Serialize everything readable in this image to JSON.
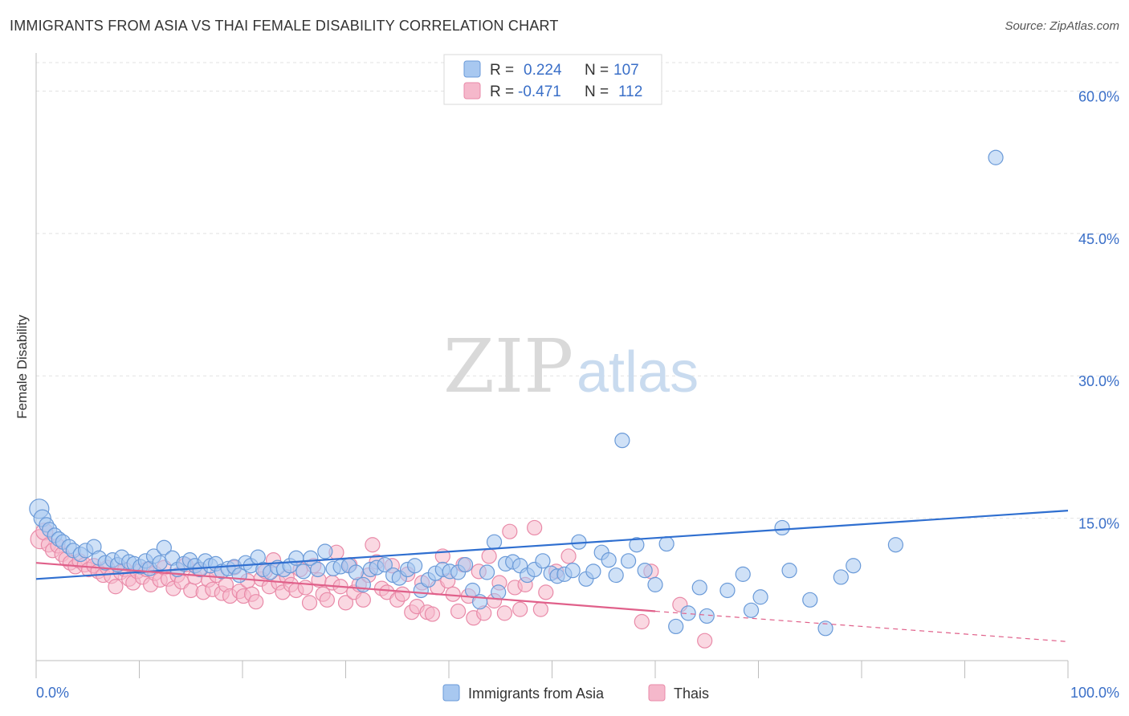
{
  "title": "IMMIGRANTS FROM ASIA VS THAI FEMALE DISABILITY CORRELATION CHART",
  "source": "Source: ZipAtlas.com",
  "watermark": {
    "part1": "ZIP",
    "part2": "atlas"
  },
  "legend_top": [
    {
      "r_label": "R =",
      "r_value": "0.224",
      "n_label": "N =",
      "n_value": "107",
      "color": "#a8c8f0"
    },
    {
      "r_label": "R =",
      "r_value": "-0.471",
      "n_label": "N =",
      "n_value": "112",
      "color": "#f5b8cb"
    }
  ],
  "legend_bottom": [
    {
      "label": "Immigrants from Asia",
      "color": "#a8c8f0"
    },
    {
      "label": "Thais",
      "color": "#f5b8cb"
    }
  ],
  "colors": {
    "blue_fill": "#a8c8f0",
    "blue_stroke": "#6a9ad8",
    "blue_line": "#2f6fd0",
    "pink_fill": "#f5b8cb",
    "pink_stroke": "#e98aa8",
    "pink_line": "#e0608a",
    "grid": "#e2e2e2",
    "tick_label": "#3a6fc8"
  },
  "chart_data": {
    "type": "scatter",
    "title": "IMMIGRANTS FROM ASIA VS THAI FEMALE DISABILITY CORRELATION CHART",
    "xlabel": "",
    "ylabel": "Female Disability",
    "xlim": [
      0,
      100
    ],
    "ylim": [
      0,
      63
    ],
    "x_ticks": [
      "0.0%",
      "100.0%"
    ],
    "y_ticks": [
      "15.0%",
      "30.0%",
      "45.0%",
      "60.0%"
    ],
    "y_tick_values": [
      15,
      30,
      45,
      60
    ],
    "grid": "horizontal dashed",
    "legend": "top-center",
    "series": [
      {
        "name": "Immigrants from Asia",
        "trend": {
          "x": [
            0,
            100
          ],
          "y": [
            8.6,
            15.8
          ],
          "dashed_after": null
        },
        "points": [
          [
            0.3,
            16.0
          ],
          [
            0.6,
            15.0
          ],
          [
            1.0,
            14.3
          ],
          [
            1.3,
            13.8
          ],
          [
            1.8,
            13.2
          ],
          [
            2.2,
            12.8
          ],
          [
            2.6,
            12.5
          ],
          [
            3.2,
            12.0
          ],
          [
            3.6,
            11.6
          ],
          [
            4.3,
            11.2
          ],
          [
            4.8,
            11.6
          ],
          [
            5.6,
            12.0
          ],
          [
            6.1,
            10.8
          ],
          [
            6.7,
            10.3
          ],
          [
            7.4,
            10.6
          ],
          [
            7.9,
            10.1
          ],
          [
            8.3,
            10.9
          ],
          [
            9.0,
            10.4
          ],
          [
            9.5,
            10.2
          ],
          [
            10.1,
            9.9
          ],
          [
            10.6,
            10.5
          ],
          [
            11.0,
            9.7
          ],
          [
            11.4,
            11.0
          ],
          [
            12.0,
            10.3
          ],
          [
            12.4,
            11.9
          ],
          [
            13.2,
            10.8
          ],
          [
            13.7,
            9.6
          ],
          [
            14.3,
            10.2
          ],
          [
            14.9,
            10.6
          ],
          [
            15.4,
            10.0
          ],
          [
            15.9,
            9.6
          ],
          [
            16.4,
            10.5
          ],
          [
            16.9,
            10.0
          ],
          [
            17.4,
            10.2
          ],
          [
            18.0,
            9.4
          ],
          [
            18.6,
            9.7
          ],
          [
            19.2,
            9.9
          ],
          [
            19.7,
            9.0
          ],
          [
            20.3,
            10.3
          ],
          [
            20.8,
            10.0
          ],
          [
            21.5,
            10.9
          ],
          [
            22.0,
            9.6
          ],
          [
            22.7,
            9.3
          ],
          [
            23.4,
            9.8
          ],
          [
            24.0,
            9.6
          ],
          [
            24.6,
            10.0
          ],
          [
            25.2,
            10.8
          ],
          [
            25.9,
            9.4
          ],
          [
            26.6,
            10.8
          ],
          [
            27.3,
            9.6
          ],
          [
            28.0,
            11.5
          ],
          [
            28.8,
            9.7
          ],
          [
            29.5,
            9.9
          ],
          [
            30.3,
            10.0
          ],
          [
            31.0,
            9.3
          ],
          [
            31.7,
            8.0
          ],
          [
            32.4,
            9.6
          ],
          [
            33.0,
            9.8
          ],
          [
            33.8,
            10.1
          ],
          [
            34.6,
            9.0
          ],
          [
            35.2,
            8.7
          ],
          [
            36.0,
            9.6
          ],
          [
            36.7,
            10.0
          ],
          [
            37.3,
            7.4
          ],
          [
            38.0,
            8.5
          ],
          [
            38.7,
            9.2
          ],
          [
            39.4,
            9.6
          ],
          [
            40.1,
            9.4
          ],
          [
            40.9,
            9.3
          ],
          [
            41.6,
            10.1
          ],
          [
            42.3,
            7.4
          ],
          [
            43.0,
            6.2
          ],
          [
            43.7,
            9.3
          ],
          [
            44.4,
            12.5
          ],
          [
            44.8,
            7.2
          ],
          [
            45.5,
            10.2
          ],
          [
            46.2,
            10.4
          ],
          [
            46.9,
            10.0
          ],
          [
            47.6,
            9.0
          ],
          [
            48.3,
            9.6
          ],
          [
            49.1,
            10.5
          ],
          [
            49.9,
            9.2
          ],
          [
            50.5,
            8.9
          ],
          [
            51.2,
            9.1
          ],
          [
            52.0,
            9.5
          ],
          [
            52.6,
            12.5
          ],
          [
            53.3,
            8.6
          ],
          [
            54.0,
            9.4
          ],
          [
            54.8,
            11.4
          ],
          [
            55.5,
            10.6
          ],
          [
            56.2,
            9.0
          ],
          [
            56.8,
            23.2
          ],
          [
            57.4,
            10.5
          ],
          [
            58.2,
            12.2
          ],
          [
            59.0,
            9.5
          ],
          [
            60.0,
            8.0
          ],
          [
            61.1,
            12.3
          ],
          [
            62.0,
            3.6
          ],
          [
            63.2,
            5.0
          ],
          [
            64.3,
            7.7
          ],
          [
            65.0,
            4.7
          ],
          [
            67.0,
            7.4
          ],
          [
            68.5,
            9.1
          ],
          [
            69.3,
            5.3
          ],
          [
            70.2,
            6.7
          ],
          [
            72.3,
            14.0
          ],
          [
            73.0,
            9.5
          ],
          [
            75.0,
            6.4
          ],
          [
            76.5,
            3.4
          ],
          [
            78.0,
            8.8
          ],
          [
            79.2,
            10.0
          ],
          [
            83.3,
            12.2
          ],
          [
            93.0,
            53.0
          ]
        ]
      },
      {
        "name": "Thais",
        "trend": {
          "x": [
            0,
            60
          ],
          "y": [
            10.3,
            5.2
          ],
          "dashed_to": [
            100,
            2.0
          ]
        },
        "points": [
          [
            0.4,
            12.8
          ],
          [
            0.8,
            13.6
          ],
          [
            1.2,
            12.2
          ],
          [
            1.6,
            11.6
          ],
          [
            2.1,
            12.1
          ],
          [
            2.5,
            11.2
          ],
          [
            2.9,
            10.7
          ],
          [
            3.3,
            10.3
          ],
          [
            3.8,
            9.9
          ],
          [
            4.2,
            10.5
          ],
          [
            4.7,
            10.1
          ],
          [
            5.1,
            9.6
          ],
          [
            5.6,
            10.0
          ],
          [
            6.0,
            9.4
          ],
          [
            6.5,
            9.0
          ],
          [
            6.9,
            9.8
          ],
          [
            7.3,
            8.9
          ],
          [
            7.7,
            7.8
          ],
          [
            8.2,
            9.3
          ],
          [
            8.6,
            9.6
          ],
          [
            9.0,
            8.6
          ],
          [
            9.4,
            8.2
          ],
          [
            9.8,
            9.4
          ],
          [
            10.3,
            8.8
          ],
          [
            10.7,
            9.6
          ],
          [
            11.1,
            8.0
          ],
          [
            11.5,
            9.2
          ],
          [
            12.0,
            8.5
          ],
          [
            12.4,
            9.8
          ],
          [
            12.8,
            8.6
          ],
          [
            13.3,
            7.6
          ],
          [
            13.7,
            9.0
          ],
          [
            14.1,
            8.3
          ],
          [
            14.5,
            10.1
          ],
          [
            15.0,
            7.4
          ],
          [
            15.4,
            8.8
          ],
          [
            15.8,
            9.6
          ],
          [
            16.2,
            7.2
          ],
          [
            16.7,
            8.5
          ],
          [
            17.1,
            7.5
          ],
          [
            17.5,
            9.0
          ],
          [
            18.0,
            7.1
          ],
          [
            18.4,
            8.0
          ],
          [
            18.8,
            6.8
          ],
          [
            19.2,
            9.8
          ],
          [
            19.7,
            7.3
          ],
          [
            20.1,
            6.8
          ],
          [
            20.5,
            8.4
          ],
          [
            20.9,
            7.0
          ],
          [
            21.3,
            6.2
          ],
          [
            21.8,
            8.6
          ],
          [
            22.2,
            9.4
          ],
          [
            22.6,
            7.8
          ],
          [
            23.0,
            10.6
          ],
          [
            23.5,
            8.2
          ],
          [
            23.9,
            7.2
          ],
          [
            24.3,
            8.8
          ],
          [
            24.7,
            8.0
          ],
          [
            25.2,
            7.4
          ],
          [
            25.6,
            9.6
          ],
          [
            26.1,
            7.7
          ],
          [
            26.5,
            6.1
          ],
          [
            26.9,
            10.0
          ],
          [
            27.4,
            8.5
          ],
          [
            27.8,
            7.0
          ],
          [
            28.2,
            6.4
          ],
          [
            28.7,
            8.2
          ],
          [
            29.1,
            11.4
          ],
          [
            29.5,
            7.8
          ],
          [
            30.0,
            6.1
          ],
          [
            30.4,
            10.1
          ],
          [
            30.8,
            7.2
          ],
          [
            31.3,
            8.0
          ],
          [
            31.7,
            6.4
          ],
          [
            32.2,
            9.0
          ],
          [
            32.6,
            12.2
          ],
          [
            33.0,
            10.4
          ],
          [
            33.5,
            7.6
          ],
          [
            34.0,
            7.2
          ],
          [
            34.5,
            10.0
          ],
          [
            35.0,
            6.4
          ],
          [
            35.5,
            7.0
          ],
          [
            36.0,
            9.1
          ],
          [
            36.4,
            5.1
          ],
          [
            36.9,
            5.7
          ],
          [
            37.4,
            8.2
          ],
          [
            37.9,
            5.1
          ],
          [
            38.4,
            4.9
          ],
          [
            38.9,
            7.7
          ],
          [
            39.4,
            11.0
          ],
          [
            39.9,
            8.4
          ],
          [
            40.4,
            7.0
          ],
          [
            40.9,
            5.2
          ],
          [
            41.4,
            10.1
          ],
          [
            41.9,
            6.8
          ],
          [
            42.4,
            4.5
          ],
          [
            42.9,
            9.4
          ],
          [
            43.4,
            5.0
          ],
          [
            43.9,
            11.0
          ],
          [
            44.4,
            6.3
          ],
          [
            44.9,
            8.2
          ],
          [
            45.4,
            5.0
          ],
          [
            45.9,
            13.6
          ],
          [
            46.4,
            7.7
          ],
          [
            46.9,
            5.4
          ],
          [
            47.4,
            8.0
          ],
          [
            48.3,
            14.0
          ],
          [
            48.9,
            5.4
          ],
          [
            49.4,
            7.2
          ],
          [
            50.4,
            9.4
          ],
          [
            51.6,
            11.0
          ],
          [
            58.7,
            4.1
          ],
          [
            59.6,
            9.4
          ],
          [
            62.4,
            5.9
          ],
          [
            64.8,
            2.1
          ]
        ]
      }
    ]
  }
}
